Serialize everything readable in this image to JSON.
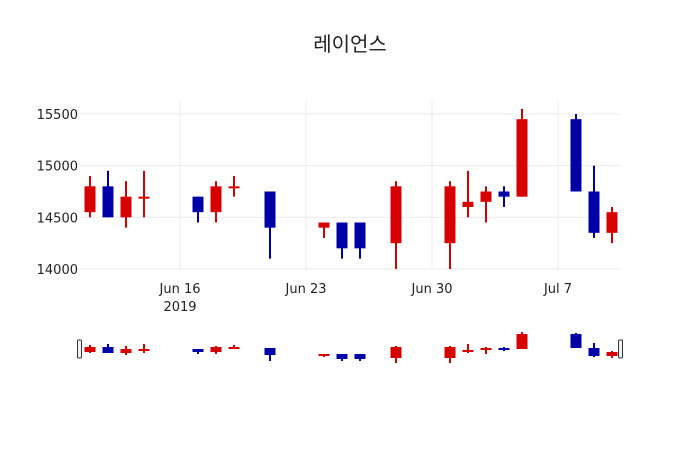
{
  "chart_data": {
    "type": "candlestick",
    "title": "레이언스",
    "xlabel": "",
    "ylabel": "",
    "ylim": [
      13960,
      15650
    ],
    "yticks": [
      14000,
      14500,
      15000,
      15500
    ],
    "xticks": [
      {
        "date": "2019-06-16",
        "label": "Jun 16",
        "sublabel": "2019"
      },
      {
        "date": "2019-06-23",
        "label": "Jun 23",
        "sublabel": ""
      },
      {
        "date": "2019-06-30",
        "label": "Jun 30",
        "sublabel": ""
      },
      {
        "date": "2019-07-07",
        "label": "Jul 7",
        "sublabel": ""
      }
    ],
    "increasing_color": "#d60000",
    "decreasing_color": "#0000a8",
    "grid": true,
    "rangeslider": true,
    "candles": [
      {
        "date": "2019-06-11",
        "open": 14550,
        "high": 14900,
        "low": 14500,
        "close": 14800
      },
      {
        "date": "2019-06-12",
        "open": 14800,
        "high": 14950,
        "low": 14500,
        "close": 14500
      },
      {
        "date": "2019-06-13",
        "open": 14500,
        "high": 14850,
        "low": 14400,
        "close": 14700
      },
      {
        "date": "2019-06-14",
        "open": 14700,
        "high": 14950,
        "low": 14500,
        "close": 14700
      },
      {
        "date": "2019-06-17",
        "open": 14700,
        "high": 14700,
        "low": 14450,
        "close": 14550
      },
      {
        "date": "2019-06-18",
        "open": 14550,
        "high": 14850,
        "low": 14450,
        "close": 14800
      },
      {
        "date": "2019-06-19",
        "open": 14800,
        "high": 14900,
        "low": 14700,
        "close": 14800
      },
      {
        "date": "2019-06-21",
        "open": 14750,
        "high": 14750,
        "low": 14100,
        "close": 14400
      },
      {
        "date": "2019-06-24",
        "open": 14400,
        "high": 14450,
        "low": 14300,
        "close": 14450
      },
      {
        "date": "2019-06-25",
        "open": 14450,
        "high": 14450,
        "low": 14100,
        "close": 14200
      },
      {
        "date": "2019-06-26",
        "open": 14450,
        "high": 14450,
        "low": 14100,
        "close": 14200
      },
      {
        "date": "2019-06-28",
        "open": 14250,
        "high": 14850,
        "low": 14000,
        "close": 14800
      },
      {
        "date": "2019-07-01",
        "open": 14250,
        "high": 14850,
        "low": 14000,
        "close": 14800
      },
      {
        "date": "2019-07-02",
        "open": 14600,
        "high": 14950,
        "low": 14500,
        "close": 14650
      },
      {
        "date": "2019-07-03",
        "open": 14650,
        "high": 14800,
        "low": 14450,
        "close": 14750
      },
      {
        "date": "2019-07-04",
        "open": 14750,
        "high": 14800,
        "low": 14600,
        "close": 14700
      },
      {
        "date": "2019-07-05",
        "open": 14700,
        "high": 15550,
        "low": 14700,
        "close": 15450
      },
      {
        "date": "2019-07-08",
        "open": 15450,
        "high": 15500,
        "low": 14750,
        "close": 14750
      },
      {
        "date": "2019-07-09",
        "open": 14750,
        "high": 15000,
        "low": 14300,
        "close": 14350
      },
      {
        "date": "2019-07-10",
        "open": 14350,
        "high": 14600,
        "low": 14250,
        "close": 14550
      }
    ]
  }
}
